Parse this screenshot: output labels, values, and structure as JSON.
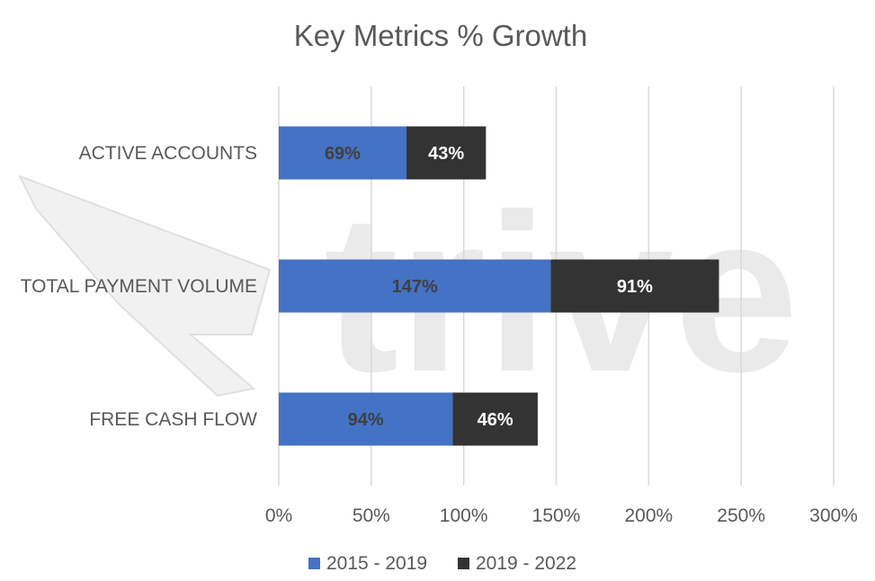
{
  "watermark": {
    "text": "trive"
  },
  "colors": {
    "series_1": "#4472C4",
    "series_2": "#333333",
    "gridline": "#d9d9d9",
    "text": "#595959",
    "watermark": "#d9d9d9"
  },
  "chart_data": {
    "type": "bar",
    "orientation": "horizontal",
    "stacked": true,
    "title": "Key Metrics % Growth",
    "categories": [
      "ACTIVE ACCOUNTS",
      "TOTAL PAYMENT VOLUME",
      "FREE CASH FLOW"
    ],
    "series": [
      {
        "name": "2015 - 2019",
        "values": [
          69,
          147,
          94
        ],
        "labels": [
          "69%",
          "147%",
          "94%"
        ],
        "label_color": "#404040"
      },
      {
        "name": "2019 - 2022",
        "values": [
          43,
          91,
          46
        ],
        "labels": [
          "43%",
          "91%",
          "46%"
        ],
        "label_color": "#ffffff"
      }
    ],
    "x_ticks": [
      "0%",
      "50%",
      "100%",
      "150%",
      "200%",
      "250%",
      "300%"
    ],
    "x_tick_values": [
      0,
      50,
      100,
      150,
      200,
      250,
      300
    ],
    "xlim": [
      0,
      300
    ],
    "xlabel": "",
    "ylabel": "",
    "grid": "vertical",
    "legend": "bottom"
  }
}
